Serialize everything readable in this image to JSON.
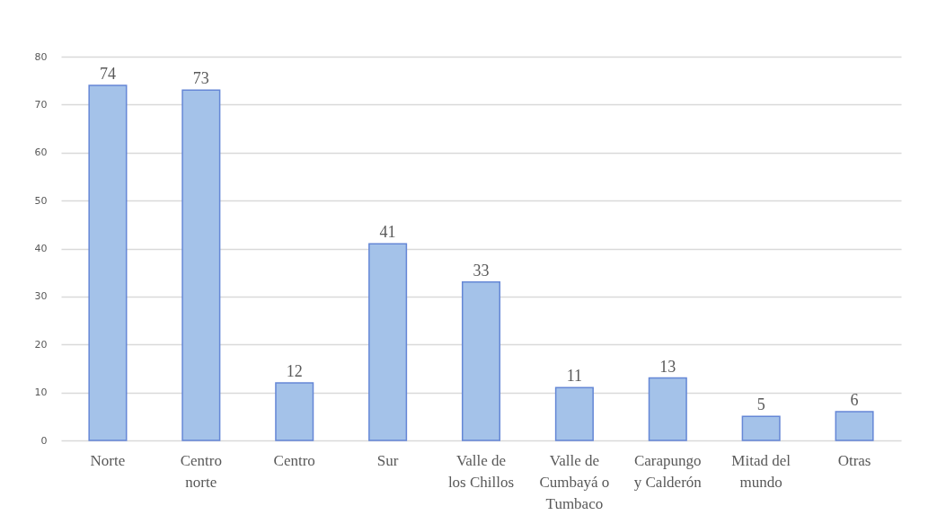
{
  "chart_data": {
    "type": "bar",
    "categories": [
      "Norte",
      "Centro norte",
      "Centro",
      "Sur",
      "Valle de los Chillos",
      "Valle de Cumbayá o Tumbaco",
      "Carapungo y Calderón",
      "Mitad del mundo",
      "Otras"
    ],
    "values": [
      74,
      73,
      12,
      41,
      33,
      11,
      13,
      5,
      6
    ],
    "color": "#a4c2e9",
    "ylim": [
      0,
      80
    ],
    "yticks": [
      0,
      10,
      20,
      30,
      40,
      50,
      60,
      70,
      80
    ],
    "grid": "y",
    "data_labels": true
  }
}
